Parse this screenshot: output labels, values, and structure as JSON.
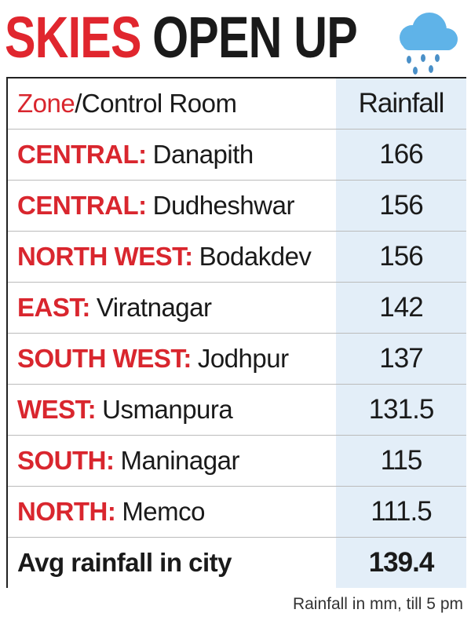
{
  "title": {
    "part1": "SKIES",
    "part2": "OPEN UP"
  },
  "table": {
    "header": {
      "zone": "Zone",
      "room": "/Control Room",
      "rainfall": "Rainfall"
    },
    "rows": [
      {
        "zone": "CENTRAL:",
        "room": "Danapith",
        "rainfall": 166
      },
      {
        "zone": "CENTRAL:",
        "room": "Dudheshwar",
        "rainfall": 156
      },
      {
        "zone": "NORTH WEST:",
        "room": "Bodakdev",
        "rainfall": 156
      },
      {
        "zone": "EAST:",
        "room": "Viratnagar",
        "rainfall": 142
      },
      {
        "zone": "SOUTH WEST:",
        "room": "Jodhpur",
        "rainfall": 137
      },
      {
        "zone": "WEST:",
        "room": "Usmanpura",
        "rainfall": 131.5
      },
      {
        "zone": "SOUTH:",
        "room": "Maninagar",
        "rainfall": 115
      },
      {
        "zone": "NORTH:",
        "room": "Memco",
        "rainfall": 111.5
      }
    ],
    "summary": {
      "label": "Avg rainfall in city",
      "rainfall": 139.4
    }
  },
  "note": "Rainfall in mm, till 5 pm"
}
